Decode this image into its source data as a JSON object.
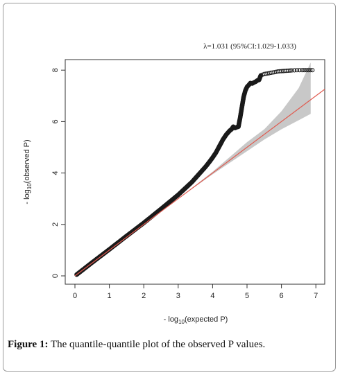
{
  "chart_data": {
    "type": "scatter",
    "annotation": "λ=1.031 (95%CI:1.029-1.033)",
    "xlabel_prefix": "- log",
    "xlabel_sub": "10",
    "xlabel_suffix": "(expected P)",
    "ylabel_prefix": "- log",
    "ylabel_sub": "10",
    "ylabel_suffix": "(observed P)",
    "xlim": [
      0,
      7
    ],
    "ylim": [
      0,
      8
    ],
    "x_ticks": [
      0,
      1,
      2,
      3,
      4,
      5,
      6,
      7
    ],
    "y_ticks": [
      0,
      2,
      4,
      6,
      8
    ],
    "reference_line": {
      "slope": 1,
      "color": "#e05a4f"
    },
    "confidence_band": {
      "color": "#c8c8c8",
      "x": [
        3.0,
        4.0,
        5.0,
        5.5,
        6.0,
        6.5,
        6.85
      ],
      "lower": [
        3.0,
        3.95,
        4.85,
        5.3,
        5.7,
        6.05,
        6.3
      ],
      "upper": [
        3.0,
        4.05,
        5.2,
        5.7,
        6.4,
        7.3,
        8.3
      ]
    },
    "points": {
      "x": [
        0.05,
        0.5,
        1.0,
        1.5,
        2.0,
        2.5,
        2.8,
        3.0,
        3.2,
        3.4,
        3.6,
        3.8,
        3.9,
        4.0,
        4.1,
        4.2,
        4.3,
        4.4,
        4.5,
        4.55,
        4.6,
        4.65,
        4.7,
        4.75,
        4.8,
        4.85,
        4.9,
        4.95,
        5.0,
        5.05,
        5.1,
        5.15,
        5.2,
        5.25,
        5.3,
        5.35,
        5.4,
        5.5,
        5.6,
        5.7,
        5.8,
        5.9,
        6.0,
        6.1,
        6.2,
        6.3,
        6.45,
        6.6,
        6.9
      ],
      "y": [
        0.05,
        0.52,
        1.03,
        1.55,
        2.06,
        2.6,
        2.93,
        3.15,
        3.4,
        3.65,
        3.95,
        4.25,
        4.42,
        4.6,
        4.8,
        5.05,
        5.3,
        5.5,
        5.65,
        5.7,
        5.8,
        5.75,
        5.78,
        5.8,
        6.15,
        6.55,
        6.95,
        7.2,
        7.35,
        7.42,
        7.5,
        7.48,
        7.52,
        7.55,
        7.6,
        7.62,
        7.8,
        7.85,
        7.87,
        7.9,
        7.92,
        7.95,
        7.96,
        7.97,
        7.98,
        7.99,
        8.0,
        8.0,
        8.0
      ]
    }
  },
  "caption": {
    "label": "Figure 1:",
    "text": " The quantile-quantile plot of the observed P values."
  }
}
